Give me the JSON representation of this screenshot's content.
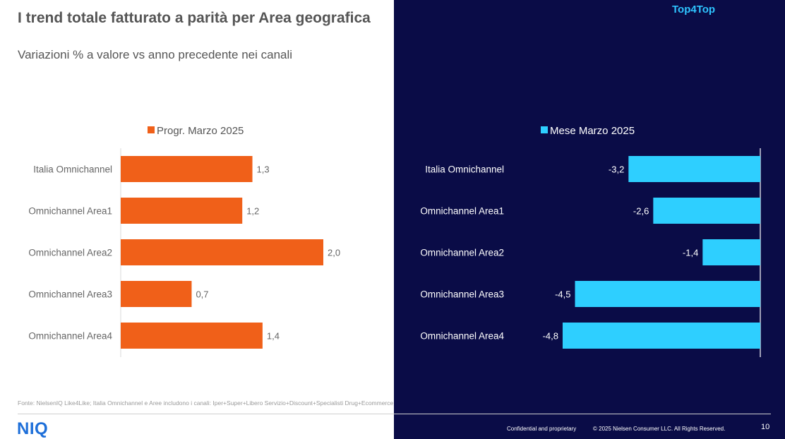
{
  "header": {
    "title": "I trend totale fatturato a parità per Area geografica",
    "subtitle": "Variazioni % a valore vs anno precedente nei canali",
    "badge": "Top4Top"
  },
  "chart_data": [
    {
      "type": "bar",
      "orientation": "horizontal",
      "categories": [
        "Italia Omnichannel",
        "Omnichannel Area1",
        "Omnichannel Area2",
        "Omnichannel Area3",
        "Omnichannel Area4"
      ],
      "series": [
        {
          "name": "Progr. Marzo 2025",
          "values": [
            1.3,
            1.2,
            2.0,
            0.7,
            1.4
          ],
          "color": "#f06019"
        }
      ],
      "data_labels": [
        "1,3",
        "1,2",
        "2,0",
        "0,7",
        "1,4"
      ],
      "xlim": [
        0,
        2.2
      ],
      "legend": "top",
      "grid": false
    },
    {
      "type": "bar",
      "orientation": "horizontal",
      "categories": [
        "Italia Omnichannel",
        "Omnichannel Area1",
        "Omnichannel Area2",
        "Omnichannel Area3",
        "Omnichannel Area4"
      ],
      "series": [
        {
          "name": "Mese Marzo 2025",
          "values": [
            -3.2,
            -2.6,
            -1.4,
            -4.5,
            -4.8
          ],
          "color": "#2ecfff"
        }
      ],
      "data_labels": [
        "-3,2",
        "-2,6",
        "-1,4",
        "-4,5",
        "-4,8"
      ],
      "xlim": [
        -5.2,
        0
      ],
      "legend": "top",
      "grid": false
    }
  ],
  "footer": {
    "source": "Fonte: NielsenIQ Like4Like; Italia Omnichannel e Aree includono i canali: Iper+Super+Libero Servizio+Discount+Specialisti Drug+Ecommerce",
    "logo": "NIQ",
    "confidential": "Confidential and proprietary",
    "copyright": "© 2025 Nielsen Consumer LLC. All Rights Reserved.",
    "page_number": "10"
  }
}
